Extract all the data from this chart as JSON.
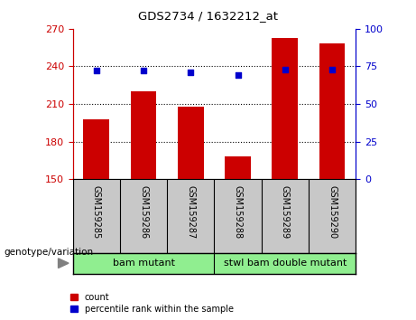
{
  "title": "GDS2734 / 1632212_at",
  "samples": [
    "GSM159285",
    "GSM159286",
    "GSM159287",
    "GSM159288",
    "GSM159289",
    "GSM159290"
  ],
  "counts": [
    198,
    220,
    208,
    168,
    263,
    258
  ],
  "percentile_ranks": [
    72,
    72,
    71,
    69,
    73,
    73
  ],
  "group1_label": "bam mutant",
  "group2_label": "stwl bam double mutant",
  "group1_indices": [
    0,
    1,
    2
  ],
  "group2_indices": [
    3,
    4,
    5
  ],
  "ylim_left": [
    150,
    270
  ],
  "ylim_right": [
    0,
    100
  ],
  "yticks_left": [
    150,
    180,
    210,
    240,
    270
  ],
  "yticks_right": [
    0,
    25,
    50,
    75,
    100
  ],
  "bar_color": "#cc0000",
  "dot_color": "#0000cc",
  "axis_left_color": "#cc0000",
  "axis_right_color": "#0000cc",
  "tick_label_bg": "#c8c8c8",
  "group_area_bg": "#90EE90",
  "bar_width": 0.55,
  "legend_count_label": "count",
  "legend_percentile_label": "percentile rank within the sample",
  "genotype_label": "genotype/variation"
}
